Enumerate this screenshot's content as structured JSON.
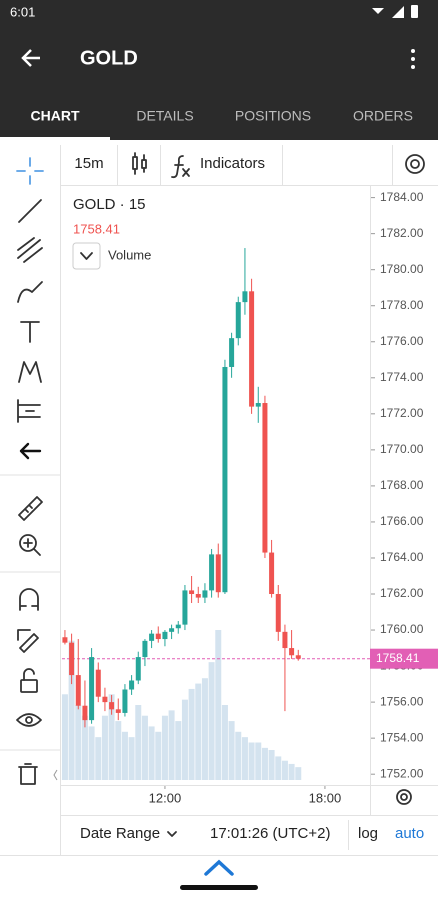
{
  "status_bar": {
    "time": "6:01"
  },
  "app_bar": {
    "title": "GOLD"
  },
  "tabs": [
    "CHART",
    "DETAILS",
    "POSITIONS",
    "ORDERS"
  ],
  "toolbar": {
    "interval": "15m",
    "indicators": "Indicators"
  },
  "footer": {
    "date_range": "Date Range",
    "time": "17:01:26 (UTC+2)",
    "log": "log",
    "auto": "auto"
  },
  "chart_data": {
    "type": "candlestick",
    "title": "GOLD · 15",
    "volume_label": "Volume",
    "up_color": "#26a69a",
    "down_color": "#ef5350",
    "volume_color": "#d4e3ef",
    "price_line_color": "#e25fb5",
    "x": [
      8.25,
      8.5,
      8.75,
      9,
      9.25,
      9.5,
      9.75,
      10,
      10.25,
      10.5,
      10.75,
      11,
      11.25,
      11.5,
      11.75,
      12,
      12.25,
      12.5,
      12.75,
      13,
      13.25,
      13.5,
      13.75,
      14,
      14.25,
      14.5,
      14.75,
      15,
      15.25,
      15.5,
      15.75,
      16,
      16.25,
      16.5,
      16.75,
      17
    ],
    "open": [
      1759.6,
      1759.3,
      1757.5,
      1755.8,
      1755.0,
      1757.8,
      1756.3,
      1756.0,
      1755.6,
      1755.4,
      1756.7,
      1757.2,
      1758.5,
      1759.4,
      1759.8,
      1759.5,
      1759.9,
      1760.1,
      1760.3,
      1762.2,
      1762.0,
      1761.8,
      1762.2,
      1764.2,
      1762.1,
      1774.6,
      1776.2,
      1778.2,
      1778.8,
      1772.4,
      1772.6,
      1764.3,
      1762.0,
      1759.9,
      1759.0,
      1758.6
    ],
    "high": [
      1760.0,
      1759.8,
      1759.5,
      1757.2,
      1759.0,
      1758.2,
      1756.8,
      1756.4,
      1756.2,
      1757.0,
      1757.5,
      1758.8,
      1759.5,
      1760.0,
      1760.2,
      1760.0,
      1760.3,
      1760.5,
      1762.5,
      1763.0,
      1762.4,
      1762.6,
      1764.5,
      1764.8,
      1775.0,
      1776.5,
      1778.5,
      1781.2,
      1779.5,
      1773.5,
      1773.0,
      1765.0,
      1762.5,
      1760.3,
      1760.0,
      1758.9
    ],
    "low": [
      1759.2,
      1757.0,
      1755.6,
      1754.6,
      1754.8,
      1756.0,
      1755.5,
      1755.3,
      1755.0,
      1755.2,
      1756.4,
      1757.0,
      1758.0,
      1759.0,
      1759.3,
      1759.1,
      1759.5,
      1759.8,
      1760.0,
      1761.5,
      1761.5,
      1761.5,
      1761.8,
      1761.8,
      1762.0,
      1774.0,
      1775.8,
      1777.5,
      1772.0,
      1771.5,
      1764.0,
      1761.8,
      1759.4,
      1755.5,
      1758.4,
      1758.3
    ],
    "close": [
      1759.3,
      1757.5,
      1755.8,
      1755.0,
      1758.5,
      1756.3,
      1756.0,
      1755.6,
      1755.4,
      1756.7,
      1757.2,
      1758.5,
      1759.4,
      1759.8,
      1759.5,
      1759.9,
      1760.1,
      1760.3,
      1762.2,
      1762.0,
      1761.8,
      1762.2,
      1764.2,
      1762.1,
      1774.6,
      1776.2,
      1778.2,
      1778.8,
      1772.4,
      1772.6,
      1764.3,
      1762.0,
      1759.9,
      1759.0,
      1758.6,
      1758.41
    ],
    "volume": [
      80,
      130,
      70,
      60,
      50,
      40,
      60,
      80,
      55,
      45,
      40,
      70,
      60,
      50,
      45,
      60,
      65,
      55,
      75,
      85,
      90,
      95,
      110,
      140,
      70,
      55,
      45,
      40,
      35,
      35,
      30,
      28,
      22,
      18,
      15,
      12
    ],
    "xlim": [
      8.14,
      19.69
    ],
    "xticks": [
      {
        "value": 12,
        "label": "12:00"
      },
      {
        "value": 18,
        "label": "18:00"
      }
    ],
    "ylim": [
      1751.4,
      1784.7
    ],
    "yticks": [
      {
        "value": 1752,
        "label": "1752.00"
      },
      {
        "value": 1754,
        "label": "1754.00"
      },
      {
        "value": 1756,
        "label": "1756.00"
      },
      {
        "value": 1758,
        "label": "1758.00"
      },
      {
        "value": 1760,
        "label": "1760.00"
      },
      {
        "value": 1762,
        "label": "1762.00"
      },
      {
        "value": 1764,
        "label": "1764.00"
      },
      {
        "value": 1766,
        "label": "1766.00"
      },
      {
        "value": 1768,
        "label": "1768.00"
      },
      {
        "value": 1770,
        "label": "1770.00"
      },
      {
        "value": 1772,
        "label": "1772.00"
      },
      {
        "value": 1774,
        "label": "1774.00"
      },
      {
        "value": 1776,
        "label": "1776.00"
      },
      {
        "value": 1778,
        "label": "1778.00"
      },
      {
        "value": 1780,
        "label": "1780.00"
      },
      {
        "value": 1782,
        "label": "1782.00"
      },
      {
        "value": 1784,
        "label": "1784.00"
      }
    ]
  }
}
